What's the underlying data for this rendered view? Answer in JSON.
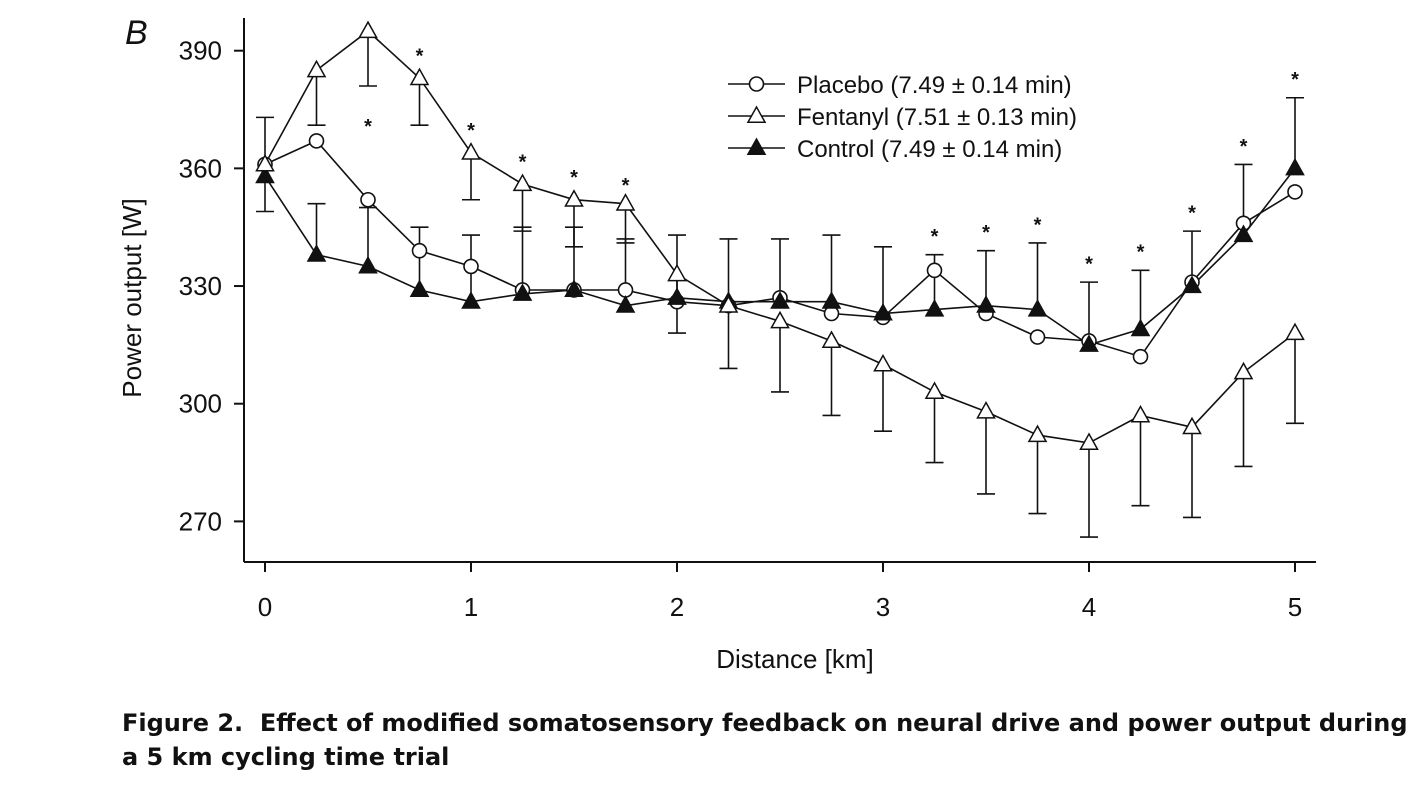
{
  "figure": {
    "panel_label": "B",
    "caption_number": "Figure 2.",
    "caption_title": "Effect of modified somatosensory feedback on neural drive and power output during a 5 km cycling time trial"
  },
  "chart_data": {
    "type": "line",
    "xlabel": "Distance [km]",
    "ylabel": "Power output [W]",
    "xlim": [
      0,
      5
    ],
    "ylim": [
      265,
      394
    ],
    "x_ticks": [
      0,
      1,
      2,
      3,
      4,
      5
    ],
    "x_tick_labels": [
      "0",
      "1",
      "2",
      "3",
      "4",
      "5"
    ],
    "y_ticks": [
      270,
      300,
      330,
      360,
      390
    ],
    "y_tick_labels": [
      "270",
      "300",
      "330",
      "360",
      "390"
    ],
    "grid": false,
    "legend_position": "top-center",
    "x": [
      0,
      0.25,
      0.5,
      0.75,
      1,
      1.25,
      1.5,
      1.75,
      2,
      2.25,
      2.5,
      2.75,
      3,
      3.25,
      3.5,
      3.75,
      4,
      4.25,
      4.5,
      4.75,
      5
    ],
    "series": [
      {
        "name": "Placebo (7.49 ± 0.14 min)",
        "marker": "open-circle",
        "values": [
          361,
          367,
          352,
          339,
          335,
          329,
          329,
          329,
          326,
          325,
          327,
          323,
          322,
          334,
          323,
          317,
          316,
          312,
          331,
          346,
          354
        ],
        "error_up": []
      },
      {
        "name": "Fentanyl (7.51 ± 0.13 min)",
        "marker": "open-triangle",
        "values": [
          361,
          385,
          395,
          383,
          364,
          356,
          352,
          351,
          333,
          325,
          321,
          316,
          310,
          303,
          298,
          292,
          290,
          297,
          294,
          308,
          318
        ],
        "error_up": [
          null,
          371,
          381,
          371,
          352,
          344,
          340,
          341,
          318,
          309,
          303,
          297,
          293,
          285,
          277,
          272,
          266,
          274,
          271,
          284,
          295
        ]
      },
      {
        "name": "Control (7.49 ± 0.14 min)",
        "marker": "filled-triangle",
        "values": [
          358,
          338,
          335,
          329,
          326,
          328,
          329,
          325,
          327,
          326,
          326,
          326,
          323,
          324,
          325,
          324,
          315,
          319,
          330,
          343,
          360
        ],
        "error_up": [
          373,
          351,
          350,
          345,
          343,
          345,
          345,
          342,
          343,
          342,
          342,
          343,
          340,
          338,
          339,
          341,
          331,
          334,
          344,
          361,
          378
        ]
      }
    ],
    "control_error_down": [
      349
    ],
    "annotations": [
      {
        "text": "*",
        "x": 0.5,
        "y": 371
      },
      {
        "text": "*",
        "x": 0.75,
        "y": 389
      },
      {
        "text": "*",
        "x": 1,
        "y": 370
      },
      {
        "text": "*",
        "x": 1.25,
        "y": 362
      },
      {
        "text": "*",
        "x": 1.5,
        "y": 358
      },
      {
        "text": "*",
        "x": 1.75,
        "y": 356
      },
      {
        "text": "*",
        "x": 3.25,
        "y": 343
      },
      {
        "text": "*",
        "x": 3.5,
        "y": 344
      },
      {
        "text": "*",
        "x": 3.75,
        "y": 346
      },
      {
        "text": "*",
        "x": 4,
        "y": 336
      },
      {
        "text": "*",
        "x": 4.25,
        "y": 339
      },
      {
        "text": "*",
        "x": 4.5,
        "y": 349
      },
      {
        "text": "*",
        "x": 4.75,
        "y": 366
      },
      {
        "text": "*",
        "x": 5,
        "y": 383
      }
    ]
  }
}
